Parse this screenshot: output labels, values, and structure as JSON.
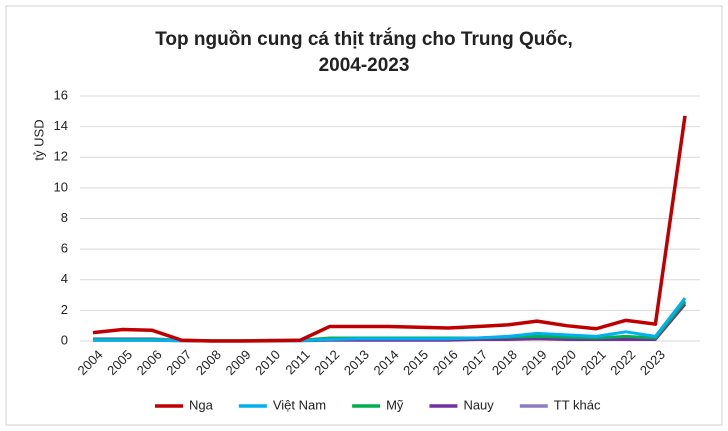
{
  "chart_data": {
    "type": "line",
    "title": [
      "Top nguồn cung cá thịt trắng cho Trung Quốc,",
      "2004-2023"
    ],
    "y_label": "tỷ USD",
    "categories": [
      "2004",
      "2005",
      "2006",
      "2007",
      "2008",
      "2009",
      "2010",
      "2011",
      "2012",
      "2013",
      "2014",
      "2015",
      "2016",
      "2017",
      "2018",
      "2019",
      "2020",
      "2021",
      "2022",
      "2023",
      null
    ],
    "series": [
      {
        "name": "Nga",
        "color": "#c00000",
        "values": [
          0.55,
          0.75,
          0.7,
          0.05,
          0,
          0,
          0.02,
          0.05,
          0.95,
          0.95,
          0.95,
          0.9,
          0.85,
          0.95,
          1.05,
          1.3,
          1.0,
          0.8,
          1.35,
          1.1,
          14.7
        ]
      },
      {
        "name": "Việt Nam",
        "color": "#00b0f0",
        "values": [
          0.05,
          0.05,
          0.05,
          0.02,
          0,
          0,
          0,
          0.02,
          0.1,
          0.15,
          0.15,
          0.15,
          0.15,
          0.2,
          0.3,
          0.5,
          0.4,
          0.3,
          0.6,
          0.3,
          2.8
        ]
      },
      {
        "name": "Mỹ",
        "color": "#00b050",
        "values": [
          0.1,
          0.1,
          0.1,
          0.05,
          0.02,
          0.02,
          0.05,
          0.05,
          0.2,
          0.2,
          0.2,
          0.2,
          0.2,
          0.2,
          0.25,
          0.3,
          0.25,
          0.2,
          0.3,
          0.2,
          2.6
        ]
      },
      {
        "name": "Nauy",
        "color": "#7030a0",
        "values": [
          0.05,
          0.05,
          0.05,
          0.02,
          0,
          0,
          0.02,
          0.02,
          0.05,
          0.05,
          0.05,
          0.05,
          0.05,
          0.1,
          0.1,
          0.15,
          0.1,
          0.1,
          0.1,
          0.1,
          2.4
        ]
      },
      {
        "name": "TT khác",
        "color": "#8e7cc3",
        "values": [
          0.15,
          0.15,
          0.15,
          0.05,
          0.02,
          0.02,
          0.05,
          0.05,
          0.15,
          0.15,
          0.15,
          0.15,
          0.15,
          0.15,
          0.15,
          0.2,
          0.2,
          0.15,
          0.2,
          0.15,
          2.5
        ]
      }
    ],
    "ylim": [
      0,
      16
    ],
    "yticks": [
      0,
      2,
      4,
      6,
      8,
      10,
      12,
      14,
      16
    ],
    "grid": true,
    "legend": "bottom"
  }
}
